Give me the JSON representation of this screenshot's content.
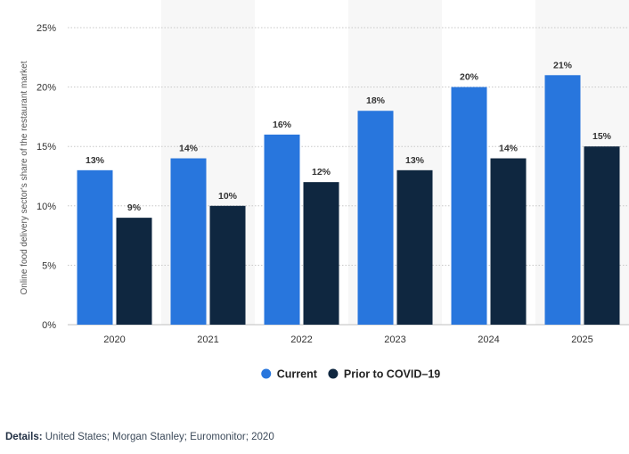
{
  "chart_data": {
    "type": "bar",
    "categories": [
      "2020",
      "2021",
      "2022",
      "2023",
      "2024",
      "2025"
    ],
    "series": [
      {
        "name": "Current",
        "values": [
          13,
          14,
          16,
          18,
          20,
          21
        ],
        "color": "#2876dd"
      },
      {
        "name": "Prior to COVID-19",
        "values": [
          9,
          10,
          12,
          13,
          14,
          15
        ],
        "color": "#0f2740"
      }
    ],
    "value_suffix": "%",
    "ylabel": "Online food delivery sector's share of the restaurant market",
    "xlabel": "",
    "ylim": [
      0,
      25
    ],
    "yticks": [
      "0%",
      "5%",
      "10%",
      "15%",
      "20%",
      "25%"
    ],
    "grid": true,
    "legend_position": "bottom-center"
  },
  "footer": {
    "details_label": "Details:",
    "details_text": " United States; Morgan Stanley; Euromonitor; 2020"
  }
}
